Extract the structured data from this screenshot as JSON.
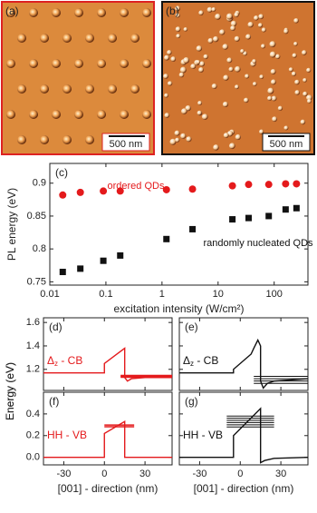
{
  "images": [
    {
      "label": "(a)",
      "scale_bar": "500 nm"
    },
    {
      "label": "(b)",
      "scale_bar": "500 nm"
    }
  ],
  "chart_data": [
    {
      "type": "scatter",
      "panel": "(c)",
      "ylabel": "PL energy (eV)",
      "xlabel": "excitation intensity (W/cm²)",
      "xscale": "log",
      "xlim": [
        0.01,
        400
      ],
      "ylim": [
        0.745,
        0.93
      ],
      "xticks": [
        0.01,
        0.1,
        1,
        10,
        100
      ],
      "yticks": [
        0.75,
        0.8,
        0.85,
        0.9
      ],
      "annotations": [
        "ordered QDs",
        "randomly nucleated QDs"
      ],
      "series": [
        {
          "color": "#e41a1c",
          "x": [
            0.017,
            0.035,
            0.09,
            0.18,
            1.2,
            3.5,
            18,
            35,
            80,
            160,
            250
          ],
          "values": [
            0.882,
            0.886,
            0.888,
            0.888,
            0.89,
            0.891,
            0.896,
            0.898,
            0.898,
            0.899,
            0.899
          ]
        },
        {
          "color": "#111111",
          "x": [
            0.017,
            0.035,
            0.09,
            0.18,
            1.2,
            3.5,
            18,
            35,
            80,
            160,
            250
          ],
          "values": [
            0.765,
            0.77,
            0.782,
            0.79,
            0.815,
            0.83,
            0.845,
            0.847,
            0.85,
            0.86,
            0.862
          ]
        }
      ]
    },
    {
      "type": "line",
      "panel": "(d)",
      "ylabel": "Energy (eV)",
      "label": [
        "Δ",
        "z",
        " - CB"
      ],
      "color": "#e41a1c",
      "xlim": [
        -45,
        50
      ],
      "ylim": [
        1.02,
        1.64
      ],
      "xticks": [
        -30,
        0,
        30
      ],
      "yticks": [
        1.2,
        1.4,
        1.6
      ],
      "xtick_labels": false,
      "ytick_labels": true,
      "x": [
        -45,
        0,
        0,
        15,
        15,
        17,
        20,
        30,
        50
      ],
      "values": [
        1.17,
        1.17,
        1.25,
        1.38,
        1.13,
        1.1,
        1.12,
        1.13,
        1.13
      ],
      "levels_x": [
        12,
        50
      ],
      "levels": [
        1.13,
        1.135,
        1.14,
        1.145,
        1.15
      ]
    },
    {
      "type": "line",
      "panel": "(e)",
      "label": [
        "Δ",
        "z",
        " - CB"
      ],
      "color": "#111111",
      "xlim": [
        -45,
        50
      ],
      "ylim": [
        1.02,
        1.64
      ],
      "xticks": [
        -30,
        0,
        30
      ],
      "yticks": [
        1.2,
        1.4,
        1.6
      ],
      "xtick_labels": false,
      "ytick_labels": false,
      "x": [
        -45,
        -5,
        -5,
        8,
        10,
        13,
        15,
        15,
        17,
        20,
        25,
        50
      ],
      "values": [
        1.17,
        1.17,
        1.2,
        1.33,
        1.38,
        1.45,
        1.4,
        1.1,
        1.04,
        1.08,
        1.1,
        1.12
      ],
      "levels_x": [
        10,
        50
      ],
      "levels": [
        1.08,
        1.1,
        1.12,
        1.14
      ]
    },
    {
      "type": "line",
      "panel": "(f)",
      "ylabel": "Energy (eV)",
      "xlabel": "[001] - direction (nm)",
      "label": [
        "HH - VB"
      ],
      "color": "#e41a1c",
      "xlim": [
        -45,
        50
      ],
      "ylim": [
        -0.07,
        0.6
      ],
      "xticks": [
        -30,
        0,
        30
      ],
      "yticks": [
        {
          "value": 0,
          "label": "0.0"
        },
        0.2,
        0.4
      ],
      "xtick_labels": true,
      "ytick_labels": true,
      "x": [
        -45,
        0,
        0,
        15,
        15,
        50
      ],
      "values": [
        0,
        0,
        0.22,
        0.33,
        0,
        0
      ],
      "levels_x": [
        0,
        22
      ],
      "levels": [
        0.28,
        0.29,
        0.3
      ]
    },
    {
      "type": "line",
      "panel": "(g)",
      "xlabel": "[001] - direction (nm)",
      "label": [
        "HH - VB"
      ],
      "color": "#111111",
      "xlim": [
        -45,
        50
      ],
      "ylim": [
        -0.07,
        0.6
      ],
      "xticks": [
        -30,
        0,
        30
      ],
      "yticks": [
        {
          "value": 0,
          "label": "0.0"
        },
        0.2,
        0.4
      ],
      "xtick_labels": true,
      "ytick_labels": false,
      "x": [
        -45,
        -5,
        -5,
        15,
        15,
        18,
        25,
        50
      ],
      "values": [
        0,
        0,
        0.2,
        0.45,
        -0.05,
        -0.03,
        -0.01,
        0
      ],
      "levels_x": [
        -10,
        25
      ],
      "levels": [
        0.28,
        0.3,
        0.32,
        0.34,
        0.36,
        0.38
      ]
    }
  ]
}
